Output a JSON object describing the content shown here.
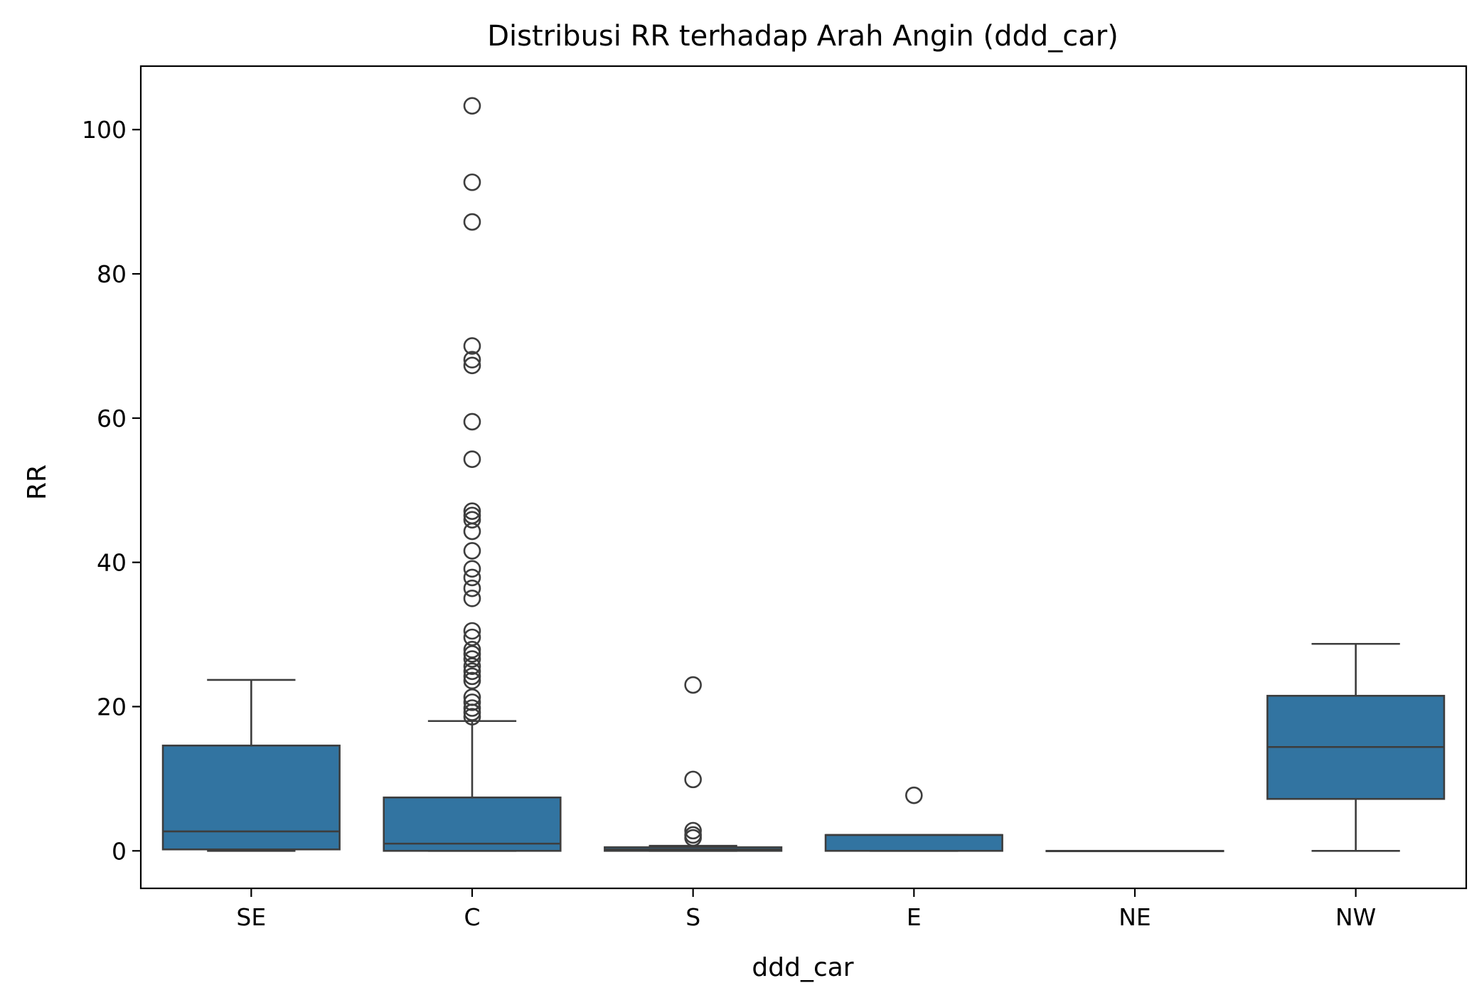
{
  "chart_data": {
    "type": "box",
    "title": "Distribusi RR terhadap Arah Angin (ddd_car)",
    "xlabel": "ddd_car",
    "ylabel": "RR",
    "ylim": [
      -5.2,
      108.8
    ],
    "yticks": [
      0,
      20,
      40,
      60,
      80,
      100
    ],
    "ytick_labels": [
      "0",
      "20",
      "40",
      "60",
      "80",
      "100"
    ],
    "categories": [
      "SE",
      "C",
      "S",
      "E",
      "NE",
      "NW"
    ],
    "grid": false,
    "legend": "none",
    "box_color": "#3274a1",
    "line_color": "#3d3d3d",
    "boxes": [
      {
        "category": "SE",
        "whisker_low": 0.0,
        "q1": 0.2,
        "median": 2.7,
        "q3": 14.6,
        "whisker_high": 23.7,
        "outliers": []
      },
      {
        "category": "C",
        "whisker_low": 0.0,
        "q1": 0.0,
        "median": 1.0,
        "q3": 7.4,
        "whisker_high": 18.0,
        "outliers": [
          18.6,
          19.2,
          19.8,
          20.6,
          21.3,
          23.6,
          24.2,
          24.9,
          25.6,
          26.6,
          27.3,
          27.9,
          29.6,
          30.5,
          35.0,
          36.4,
          37.9,
          39.1,
          41.6,
          44.3,
          45.9,
          46.5,
          47.1,
          54.3,
          59.5,
          67.3,
          68.1,
          70.0,
          87.2,
          92.7,
          103.3
        ]
      },
      {
        "category": "S",
        "whisker_low": 0.0,
        "q1": 0.0,
        "median": 0.2,
        "q3": 0.5,
        "whisker_high": 0.7,
        "outliers": [
          1.8,
          2.2,
          2.8,
          9.9,
          23.0
        ]
      },
      {
        "category": "E",
        "whisker_low": 0.0,
        "q1": 0.0,
        "median": 2.2,
        "q3": 2.2,
        "whisker_high": 2.2,
        "outliers": [
          7.7
        ]
      },
      {
        "category": "NE",
        "whisker_low": 0.0,
        "q1": 0.0,
        "median": 0.0,
        "q3": 0.0,
        "whisker_high": 0.0,
        "outliers": []
      },
      {
        "category": "NW",
        "whisker_low": 0.0,
        "q1": 7.2,
        "median": 14.4,
        "q3": 21.5,
        "whisker_high": 28.7,
        "outliers": []
      }
    ]
  }
}
